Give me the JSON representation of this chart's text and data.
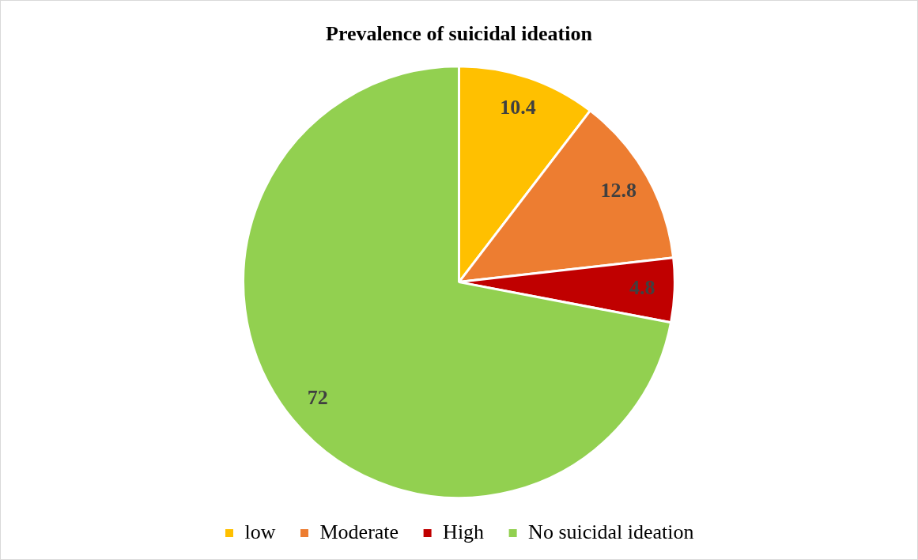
{
  "chart_data": {
    "type": "pie",
    "title": "Prevalence of suicidal ideation",
    "categories": [
      "low",
      "Moderate",
      "High",
      "No suicidal ideation"
    ],
    "values": [
      10.4,
      12.8,
      4.8,
      72
    ],
    "colors": [
      "#ffc000",
      "#ed7d31",
      "#c00000",
      "#92d050"
    ],
    "data_labels": true,
    "legend": "bottom"
  }
}
